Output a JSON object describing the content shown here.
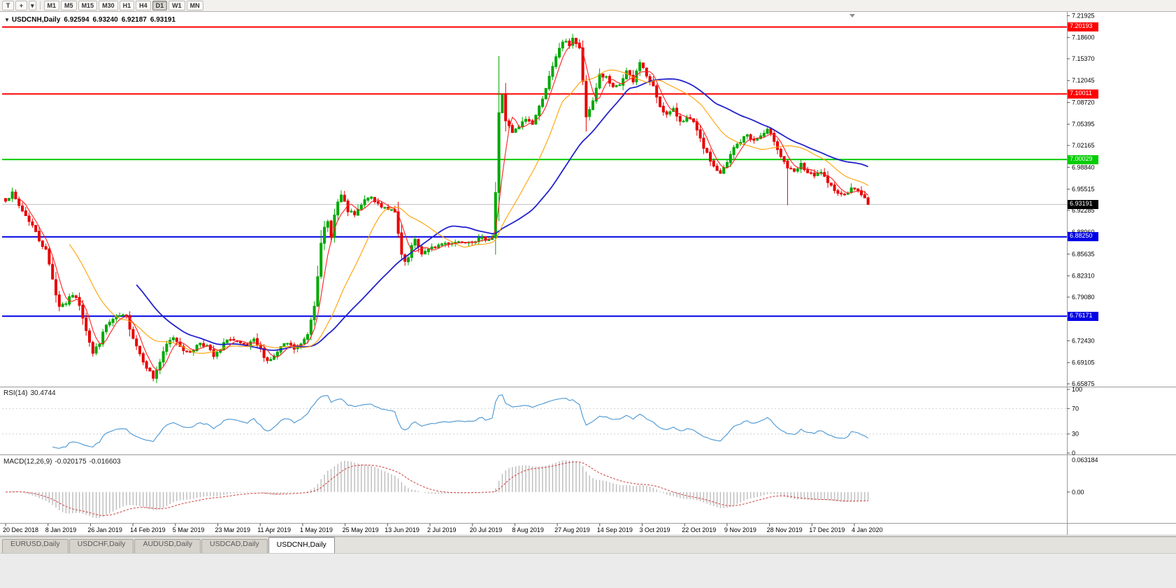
{
  "toolbar": {
    "tool_buttons": [
      {
        "name": "text-tool",
        "glyph": "T"
      },
      {
        "name": "crosshair-tool",
        "glyph": "+"
      }
    ],
    "dropdown_glyph": "▾",
    "timeframes": [
      "M1",
      "M5",
      "M15",
      "M30",
      "H1",
      "H4",
      "D1",
      "W1",
      "MN"
    ],
    "active_timeframe": "D1"
  },
  "chart_header": {
    "collapse_glyph": "▼",
    "symbol": "USDCNH,Daily",
    "open": "6.92594",
    "high": "6.93240",
    "low": "6.92187",
    "close": "6.93191"
  },
  "chart_data": {
    "type": "candlestick",
    "symbol": "USDCNH",
    "timeframe": "Daily",
    "y_axis": {
      "min": 6.6545,
      "max": 7.225,
      "ticks": [
        "7.21925",
        "7.18600",
        "7.15370",
        "7.12045",
        "7.08720",
        "7.05395",
        "7.02165",
        "6.98840",
        "6.95515",
        "6.92285",
        "6.88960",
        "6.85635",
        "6.82310",
        "6.79080",
        "6.75755",
        "6.72430",
        "6.69105",
        "6.65875"
      ]
    },
    "x_axis": {
      "labels": [
        "20 Dec 2018",
        "8 Jan 2019",
        "26 Jan 2019",
        "14 Feb 2019",
        "5 Mar 2019",
        "23 Mar 2019",
        "11 Apr 2019",
        "1 May 2019",
        "25 May 2019",
        "13 Jun 2019",
        "2 Jul 2019",
        "20 Jul 2019",
        "8 Aug 2019",
        "27 Aug 2019",
        "14 Sep 2019",
        "3 Oct 2019",
        "22 Oct 2019",
        "9 Nov 2019",
        "28 Nov 2019",
        "17 Dec 2019",
        "4 Jan 2020"
      ]
    },
    "levels": [
      {
        "price": 7.20193,
        "label": "7.20193",
        "color": "#ff0000"
      },
      {
        "price": 7.10011,
        "label": "7.10011",
        "color": "#ff0000"
      },
      {
        "price": 7.00029,
        "label": "7.00029",
        "color": "#00cc00"
      },
      {
        "price": 6.8825,
        "label": "6.88250",
        "color": "#0000e6"
      },
      {
        "price": 6.76171,
        "label": "6.76171",
        "color": "#0000e6"
      }
    ],
    "current_price": {
      "price": 6.93191,
      "label": "6.93191",
      "line_color": "#c0c0c0",
      "badge_color": "#000000"
    },
    "candles": {
      "count": 258,
      "up_color": "#00a800",
      "down_color": "#e60000",
      "volatility": 0.0032,
      "seed": 7,
      "close_path_anchors": [
        [
          0,
          6.94
        ],
        [
          2,
          6.948
        ],
        [
          4,
          6.93
        ],
        [
          6,
          6.915
        ],
        [
          8,
          6.9
        ],
        [
          10,
          6.878
        ],
        [
          12,
          6.862
        ],
        [
          14,
          6.82
        ],
        [
          15,
          6.795
        ],
        [
          16,
          6.778
        ],
        [
          18,
          6.782
        ],
        [
          20,
          6.795
        ],
        [
          22,
          6.78
        ],
        [
          24,
          6.742
        ],
        [
          26,
          6.705
        ],
        [
          28,
          6.722
        ],
        [
          30,
          6.748
        ],
        [
          32,
          6.756
        ],
        [
          34,
          6.762
        ],
        [
          36,
          6.76
        ],
        [
          38,
          6.73
        ],
        [
          40,
          6.705
        ],
        [
          42,
          6.685
        ],
        [
          44,
          6.668
        ],
        [
          46,
          6.692
        ],
        [
          48,
          6.718
        ],
        [
          50,
          6.73
        ],
        [
          52,
          6.718
        ],
        [
          54,
          6.705
        ],
        [
          56,
          6.712
        ],
        [
          58,
          6.722
        ],
        [
          60,
          6.716
        ],
        [
          62,
          6.7
        ],
        [
          64,
          6.71
        ],
        [
          66,
          6.728
        ],
        [
          68,
          6.724
        ],
        [
          70,
          6.718
        ],
        [
          72,
          6.716
        ],
        [
          74,
          6.724
        ],
        [
          76,
          6.71
        ],
        [
          78,
          6.694
        ],
        [
          80,
          6.7
        ],
        [
          82,
          6.714
        ],
        [
          84,
          6.72
        ],
        [
          86,
          6.712
        ],
        [
          88,
          6.718
        ],
        [
          90,
          6.735
        ],
        [
          92,
          6.78
        ],
        [
          94,
          6.87
        ],
        [
          95,
          6.895
        ],
        [
          96,
          6.905
        ],
        [
          97,
          6.885
        ],
        [
          98,
          6.915
        ],
        [
          99,
          6.935
        ],
        [
          100,
          6.945
        ],
        [
          102,
          6.922
        ],
        [
          104,
          6.915
        ],
        [
          106,
          6.93
        ],
        [
          108,
          6.944
        ],
        [
          110,
          6.936
        ],
        [
          112,
          6.93
        ],
        [
          114,
          6.926
        ],
        [
          116,
          6.918
        ],
        [
          118,
          6.855
        ],
        [
          119,
          6.842
        ],
        [
          120,
          6.85
        ],
        [
          121,
          6.868
        ],
        [
          122,
          6.876
        ],
        [
          124,
          6.858
        ],
        [
          126,
          6.862
        ],
        [
          128,
          6.868
        ],
        [
          130,
          6.872
        ],
        [
          133,
          6.874
        ],
        [
          136,
          6.876
        ],
        [
          139,
          6.877
        ],
        [
          142,
          6.879
        ],
        [
          145,
          6.882
        ],
        [
          146,
          6.95
        ],
        [
          147,
          7.07
        ],
        [
          148,
          7.1
        ],
        [
          149,
          7.06
        ],
        [
          151,
          7.04
        ],
        [
          153,
          7.05
        ],
        [
          155,
          7.062
        ],
        [
          157,
          7.055
        ],
        [
          159,
          7.08
        ],
        [
          161,
          7.11
        ],
        [
          163,
          7.14
        ],
        [
          165,
          7.17
        ],
        [
          166,
          7.18
        ],
        [
          168,
          7.175
        ],
        [
          169,
          7.186
        ],
        [
          171,
          7.168
        ],
        [
          172,
          7.12
        ],
        [
          173,
          7.062
        ],
        [
          175,
          7.09
        ],
        [
          177,
          7.13
        ],
        [
          179,
          7.124
        ],
        [
          181,
          7.108
        ],
        [
          183,
          7.114
        ],
        [
          185,
          7.134
        ],
        [
          187,
          7.118
        ],
        [
          189,
          7.15
        ],
        [
          191,
          7.128
        ],
        [
          193,
          7.11
        ],
        [
          195,
          7.082
        ],
        [
          197,
          7.068
        ],
        [
          199,
          7.075
        ],
        [
          201,
          7.06
        ],
        [
          203,
          7.063
        ],
        [
          205,
          7.056
        ],
        [
          207,
          7.03
        ],
        [
          209,
          7.008
        ],
        [
          211,
          6.99
        ],
        [
          213,
          6.978
        ],
        [
          215,
          6.995
        ],
        [
          217,
          7.018
        ],
        [
          219,
          7.028
        ],
        [
          221,
          7.038
        ],
        [
          223,
          7.028
        ],
        [
          225,
          7.036
        ],
        [
          227,
          7.044
        ],
        [
          229,
          7.03
        ],
        [
          231,
          7.006
        ],
        [
          233,
          6.988
        ],
        [
          235,
          6.98
        ],
        [
          237,
          6.992
        ],
        [
          239,
          6.98
        ],
        [
          241,
          6.974
        ],
        [
          243,
          6.982
        ],
        [
          245,
          6.962
        ],
        [
          247,
          6.956
        ],
        [
          249,
          6.946
        ],
        [
          251,
          6.952
        ],
        [
          253,
          6.957
        ],
        [
          255,
          6.948
        ],
        [
          256,
          6.94
        ],
        [
          257,
          6.932
        ]
      ],
      "spikes": [
        {
          "index": 147,
          "high_add": 0.045
        },
        {
          "index": 233,
          "low_add": 0.052
        }
      ]
    },
    "moving_averages": [
      {
        "name": "fast",
        "type": "sma",
        "period": 5,
        "color": "#ff2020"
      },
      {
        "name": "medium",
        "type": "sma",
        "period": 20,
        "color": "#ffa000"
      },
      {
        "name": "slow",
        "type": "sma",
        "period": 40,
        "color": "#2222cc"
      }
    ]
  },
  "rsi_panel": {
    "label": "RSI(14)",
    "value": "30.4744",
    "period": 14,
    "line_color": "#4a96d2",
    "axis_labels": [
      "100",
      "70",
      "30",
      "0"
    ],
    "level_lines": [
      70,
      30
    ]
  },
  "macd_panel": {
    "label": "MACD(12,26,9)",
    "main_value": "-0.020175",
    "signal_value": "-0.016603",
    "fast": 12,
    "slow": 26,
    "signal": 9,
    "axis_top_label": "0.063184",
    "axis_zero_label": "0.00",
    "histogram_color": "#bbbbbb",
    "signal_color": "#d04040"
  },
  "tabs": [
    {
      "label": "EURUSD,Daily",
      "active": false
    },
    {
      "label": "USDCHF,Daily",
      "active": false
    },
    {
      "label": "AUDUSD,Daily",
      "active": false
    },
    {
      "label": "USDCAD,Daily",
      "active": false
    },
    {
      "label": "USDCNH,Daily",
      "active": true
    }
  ]
}
